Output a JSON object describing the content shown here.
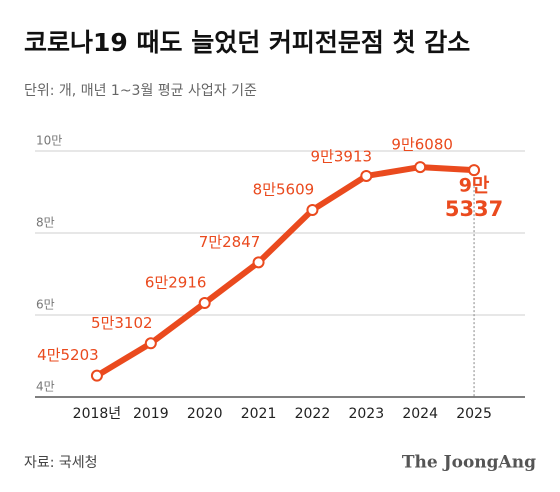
{
  "chart_data": {
    "type": "line",
    "title": "코로나19 때도 늘었던 커피전문점 첫 감소",
    "subtitle": "단위: 개, 매년 1~3월 평균 사업자 기준",
    "source": "자료: 국세청",
    "logo": "The JoongAng",
    "categories": [
      "2018년",
      "2019",
      "2020",
      "2021",
      "2022",
      "2023",
      "2024",
      "2025"
    ],
    "values": [
      45203,
      53102,
      62916,
      72847,
      85609,
      93913,
      96080,
      95337
    ],
    "value_labels": [
      "4만5203",
      "5만3102",
      "6만2916",
      "7만2847",
      "8만5609",
      "9만3913",
      "9만6080",
      [
        "9만",
        "5337"
      ]
    ],
    "color": "#ea4a1e",
    "ylim": [
      40000,
      100000
    ],
    "yticks": [
      {
        "value": 40000,
        "label": "4만"
      },
      {
        "value": 60000,
        "label": "6만"
      },
      {
        "value": 80000,
        "label": "8만"
      },
      {
        "value": 100000,
        "label": "10만"
      }
    ],
    "grid": true
  }
}
